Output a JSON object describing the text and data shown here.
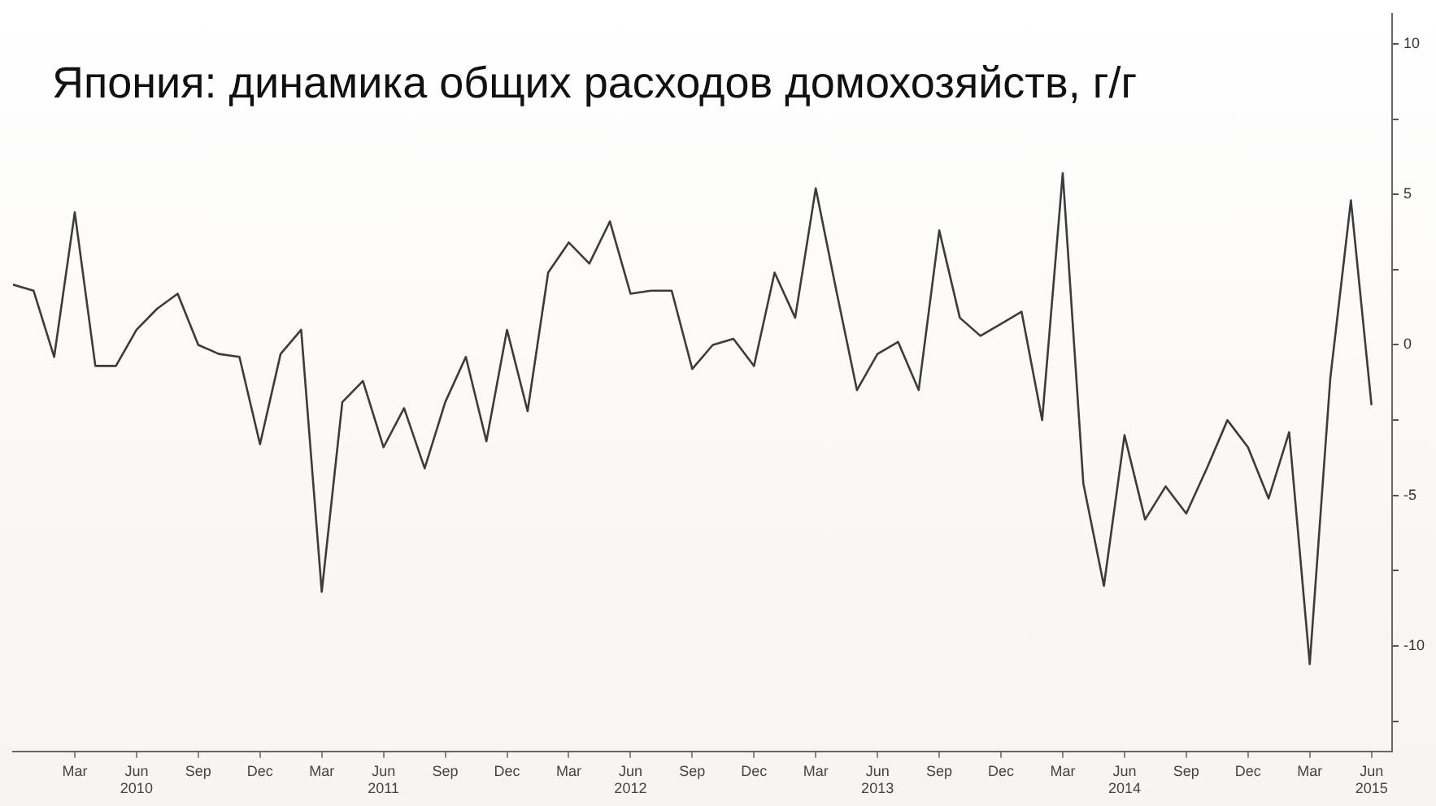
{
  "chart_data": {
    "type": "line",
    "title": "Япония: динамика общих расходов домохозяйств, г/г",
    "x": [
      "2009-12",
      "2010-01",
      "2010-02",
      "2010-03",
      "2010-04",
      "2010-05",
      "2010-06",
      "2010-07",
      "2010-08",
      "2010-09",
      "2010-10",
      "2010-11",
      "2010-12",
      "2011-01",
      "2011-02",
      "2011-03",
      "2011-04",
      "2011-05",
      "2011-06",
      "2011-07",
      "2011-08",
      "2011-09",
      "2011-10",
      "2011-11",
      "2011-12",
      "2012-01",
      "2012-02",
      "2012-03",
      "2012-04",
      "2012-05",
      "2012-06",
      "2012-07",
      "2012-08",
      "2012-09",
      "2012-10",
      "2012-11",
      "2012-12",
      "2013-01",
      "2013-02",
      "2013-03",
      "2013-04",
      "2013-05",
      "2013-06",
      "2013-07",
      "2013-08",
      "2013-09",
      "2013-10",
      "2013-11",
      "2013-12",
      "2014-01",
      "2014-02",
      "2014-03",
      "2014-04",
      "2014-05",
      "2014-06",
      "2014-07",
      "2014-08",
      "2014-09",
      "2014-10",
      "2014-11",
      "2014-12",
      "2015-01",
      "2015-02",
      "2015-03",
      "2015-04",
      "2015-05",
      "2015-06"
    ],
    "series": [
      {
        "color": "#3c3c3c",
        "values": [
          2.0,
          1.8,
          -0.4,
          4.4,
          -0.7,
          -0.7,
          0.5,
          1.2,
          1.7,
          0.0,
          -0.3,
          -0.4,
          -3.3,
          -0.3,
          0.5,
          -8.2,
          -1.9,
          -1.2,
          -3.4,
          -2.1,
          -4.1,
          -1.9,
          -0.4,
          -3.2,
          0.5,
          -2.2,
          2.4,
          3.4,
          2.7,
          4.1,
          1.7,
          1.8,
          1.8,
          -0.8,
          0.0,
          0.2,
          -0.7,
          2.4,
          0.9,
          5.2,
          1.8,
          -1.5,
          -0.3,
          0.1,
          -1.5,
          3.8,
          0.9,
          0.3,
          0.7,
          1.1,
          -2.5,
          5.7,
          -4.6,
          -8.0,
          -3.0,
          -5.8,
          -4.7,
          -5.6,
          -4.1,
          -2.5,
          -3.4,
          -5.1,
          -2.9,
          -10.6,
          -1.1,
          4.8,
          -2.0
        ]
      }
    ],
    "xlim": [
      "2009-12",
      "2015-07"
    ],
    "xticks": [
      {
        "value": "2010-03",
        "label": "Mar"
      },
      {
        "value": "2010-06",
        "label": "Jun\n2010"
      },
      {
        "value": "2010-09",
        "label": "Sep"
      },
      {
        "value": "2010-12",
        "label": "Dec"
      },
      {
        "value": "2011-03",
        "label": "Mar"
      },
      {
        "value": "2011-06",
        "label": "Jun\n2011"
      },
      {
        "value": "2011-09",
        "label": "Sep"
      },
      {
        "value": "2011-12",
        "label": "Dec"
      },
      {
        "value": "2012-03",
        "label": "Mar"
      },
      {
        "value": "2012-06",
        "label": "Jun\n2012"
      },
      {
        "value": "2012-09",
        "label": "Sep"
      },
      {
        "value": "2012-12",
        "label": "Dec"
      },
      {
        "value": "2013-03",
        "label": "Mar"
      },
      {
        "value": "2013-06",
        "label": "Jun\n2013"
      },
      {
        "value": "2013-09",
        "label": "Sep"
      },
      {
        "value": "2013-12",
        "label": "Dec"
      },
      {
        "value": "2014-03",
        "label": "Mar"
      },
      {
        "value": "2014-06",
        "label": "Jun\n2014"
      },
      {
        "value": "2014-09",
        "label": "Sep"
      },
      {
        "value": "2014-12",
        "label": "Dec"
      },
      {
        "value": "2015-03",
        "label": "Mar"
      },
      {
        "value": "2015-06",
        "label": "Jun\n2015"
      }
    ],
    "ylim": [
      -13.5,
      11
    ],
    "yticks": [
      {
        "value": -12.5,
        "label": null
      },
      -10,
      {
        "value": -7.5,
        "label": null
      },
      -5,
      {
        "value": -2.5,
        "label": null
      },
      0,
      {
        "value": 2.5,
        "label": null
      },
      5,
      {
        "value": 7.5,
        "label": null
      },
      10
    ],
    "grid": false,
    "legend": false,
    "marker": "none",
    "line_style": "solid"
  }
}
